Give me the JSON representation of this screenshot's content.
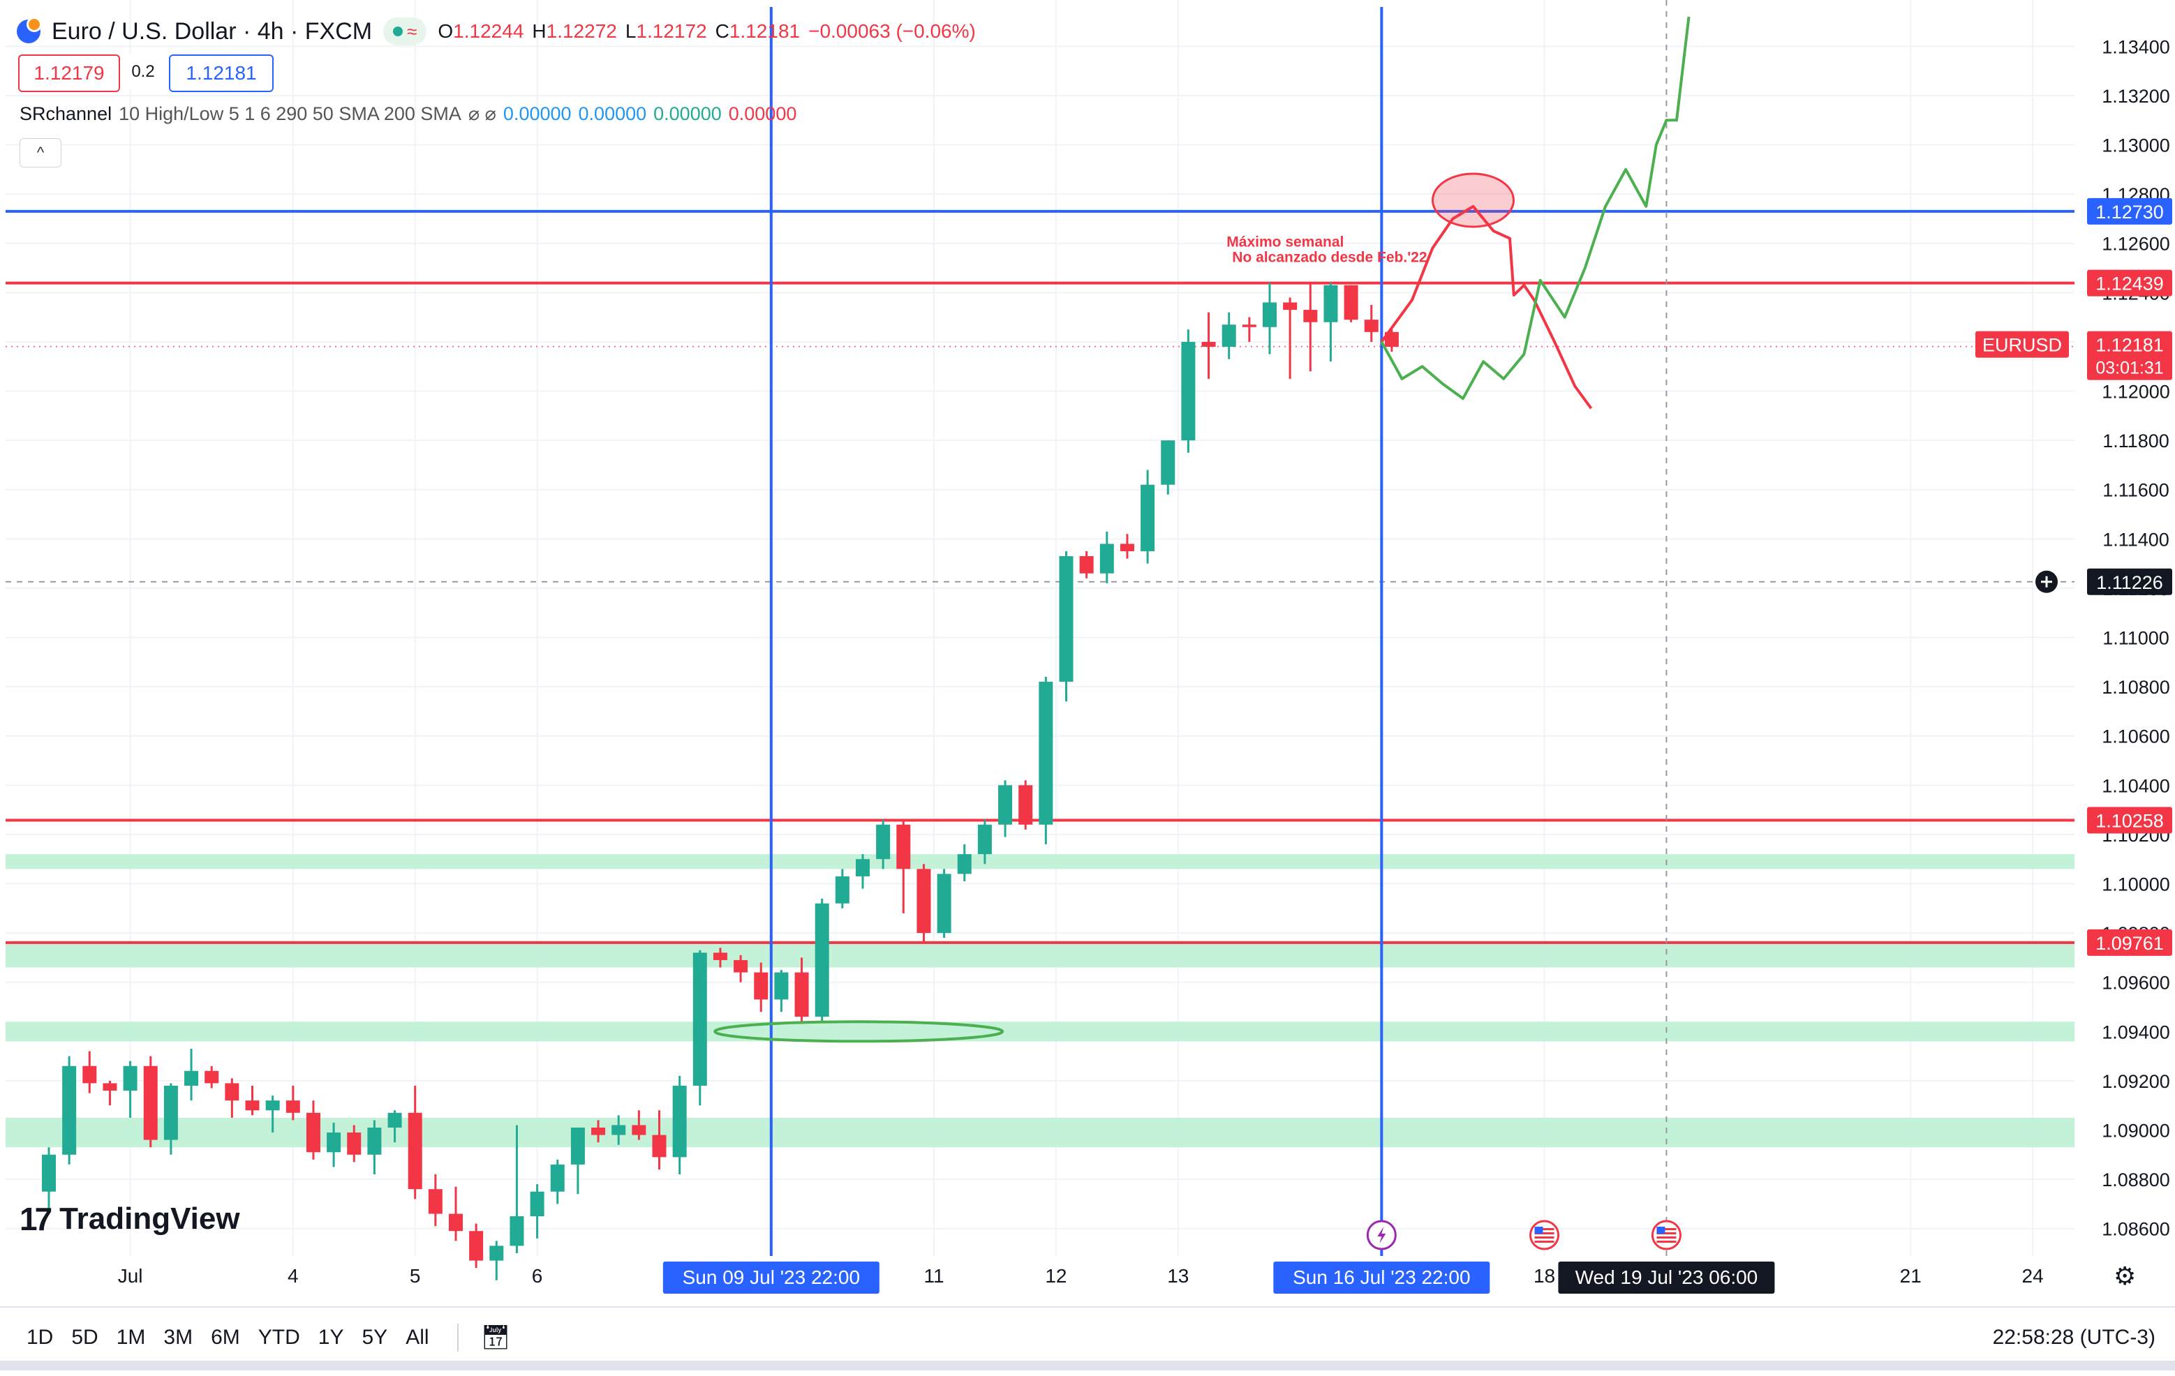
{
  "header": {
    "title": "Euro / U.S. Dollar · 4h · FXCM",
    "status_icon": "≈",
    "open_label": "O",
    "open": "1.12244",
    "high_label": "H",
    "high": "1.12272",
    "low_label": "L",
    "low": "1.12172",
    "close_label": "C",
    "close": "1.12181",
    "change": "−0.00063 (−0.06%)",
    "sell": "1.12179",
    "spread": "0.2",
    "buy": "1.12181"
  },
  "indicator": {
    "name": "SRchannel",
    "params": "10 High/Low 5 1 6 290 50 SMA 200 SMA",
    "icons": "⌀ ⌀",
    "v1": "0.00000",
    "v2": "0.00000",
    "v3": "0.00000",
    "v4": "0.00000",
    "collapse": "^"
  },
  "watermark": {
    "brand": "TradingView",
    "mark": "17"
  },
  "toolbar": {
    "ranges": [
      "1D",
      "5D",
      "1M",
      "3M",
      "6M",
      "YTD",
      "1Y",
      "5Y",
      "All"
    ],
    "calendar_icon": "calendar-icon",
    "clock": "22:58:28 (UTC-3)",
    "settings_icon": "⚙"
  },
  "colors": {
    "up": "#22ab94",
    "down": "#f23645",
    "blue": "#2962ff",
    "zone": "#b8f0d2",
    "red_line": "#f23645"
  },
  "chart_data": {
    "type": "candlestick",
    "symbol": "EURUSD",
    "interval": "4h",
    "ylim": [
      1.085,
      1.1352
    ],
    "y_ticks": [
      1.086,
      1.088,
      1.09,
      1.092,
      1.094,
      1.096,
      1.098,
      1.1,
      1.102,
      1.104,
      1.106,
      1.108,
      1.11,
      1.112,
      1.114,
      1.116,
      1.118,
      1.12,
      1.122,
      1.124,
      1.126,
      1.128,
      1.13,
      1.132,
      1.134
    ],
    "y_tick_labels": [
      "1.08600",
      "1.08800",
      "1.09000",
      "1.09200",
      "1.09400",
      "1.09600",
      "1.09800",
      "1.10000",
      "1.10200",
      "1.10400",
      "1.10600",
      "1.10800",
      "1.11000",
      "1.11200",
      "1.11400",
      "1.11600",
      "1.11800",
      "1.12000",
      "1.12200",
      "1.12400",
      "1.12600",
      "1.12800",
      "1.13000",
      "1.13200",
      "1.13400"
    ],
    "x_labels": [
      {
        "label": "Jul",
        "bar": 4
      },
      {
        "label": "4",
        "bar": 12
      },
      {
        "label": "5",
        "bar": 18
      },
      {
        "label": "6",
        "bar": 24
      },
      {
        "label": "11",
        "bar": 43.5
      },
      {
        "label": "12",
        "bar": 49.5
      },
      {
        "label": "13",
        "bar": 55.5
      },
      {
        "label": "18",
        "bar": 73.5
      },
      {
        "label": "21",
        "bar": 91.5
      },
      {
        "label": "24",
        "bar": 97.5
      }
    ],
    "x_highlight_labels": [
      {
        "label": "Sun 09 Jul '23   22:00",
        "bar": 35.5
      },
      {
        "label": "Sun 16 Jul '23   22:00",
        "bar": 65.5
      },
      {
        "label": "Wed 19 Jul '23   06:00",
        "bar": 79.5
      }
    ],
    "candles": [
      [
        1.0875,
        1.0893,
        1.0868,
        1.089
      ],
      [
        1.089,
        1.093,
        1.0886,
        1.0926
      ],
      [
        1.0926,
        1.0932,
        1.0915,
        1.0919
      ],
      [
        1.0919,
        1.092,
        1.091,
        1.0916
      ],
      [
        1.0916,
        1.0928,
        1.0905,
        1.0926
      ],
      [
        1.0926,
        1.093,
        1.0893,
        1.0896
      ],
      [
        1.0896,
        1.0919,
        1.089,
        1.0918
      ],
      [
        1.0918,
        1.0933,
        1.0912,
        1.0924
      ],
      [
        1.0924,
        1.0926,
        1.0917,
        1.0919
      ],
      [
        1.0919,
        1.0921,
        1.0905,
        1.0912
      ],
      [
        1.0912,
        1.0918,
        1.0906,
        1.0908
      ],
      [
        1.0908,
        1.0914,
        1.0899,
        1.0912
      ],
      [
        1.0912,
        1.0918,
        1.0904,
        1.0907
      ],
      [
        1.0907,
        1.0912,
        1.0888,
        1.0891
      ],
      [
        1.0891,
        1.0903,
        1.0885,
        1.0899
      ],
      [
        1.0899,
        1.0902,
        1.0887,
        1.089
      ],
      [
        1.089,
        1.0904,
        1.0882,
        1.0901
      ],
      [
        1.0901,
        1.0908,
        1.0895,
        1.0907
      ],
      [
        1.0907,
        1.0918,
        1.0872,
        1.0876
      ],
      [
        1.0876,
        1.0882,
        1.0861,
        1.0866
      ],
      [
        1.0866,
        1.0877,
        1.0855,
        1.0859
      ],
      [
        1.0859,
        1.0862,
        1.0844,
        1.0847
      ],
      [
        1.0847,
        1.0855,
        1.0839,
        1.0853
      ],
      [
        1.0853,
        1.0902,
        1.085,
        1.0865
      ],
      [
        1.0865,
        1.0878,
        1.0856,
        1.0875
      ],
      [
        1.0875,
        1.0888,
        1.087,
        1.0886
      ],
      [
        1.0886,
        1.0901,
        1.0874,
        1.0901
      ],
      [
        1.0901,
        1.0904,
        1.0895,
        1.0898
      ],
      [
        1.0898,
        1.0906,
        1.0894,
        1.0902
      ],
      [
        1.0902,
        1.0908,
        1.0896,
        1.0898
      ],
      [
        1.0898,
        1.0908,
        1.0884,
        1.0889
      ],
      [
        1.0889,
        1.0922,
        1.0882,
        1.0918
      ],
      [
        1.0918,
        1.0973,
        1.091,
        1.0972
      ],
      [
        1.0972,
        1.0974,
        1.0966,
        1.0969
      ],
      [
        1.0969,
        1.0971,
        1.096,
        1.0964
      ],
      [
        1.0964,
        1.0968,
        1.0948,
        1.0953
      ],
      [
        1.0953,
        1.0965,
        1.0948,
        1.0964
      ],
      [
        1.0964,
        1.097,
        1.0944,
        1.0946
      ],
      [
        1.0946,
        1.0994,
        1.0944,
        1.0992
      ],
      [
        1.0992,
        1.1006,
        1.099,
        1.1003
      ],
      [
        1.1003,
        1.1012,
        1.0998,
        1.101
      ],
      [
        1.101,
        1.1026,
        1.1006,
        1.1024
      ],
      [
        1.1024,
        1.1026,
        1.0988,
        1.1006
      ],
      [
        1.1006,
        1.1008,
        1.0976,
        1.098
      ],
      [
        1.098,
        1.1006,
        1.0978,
        1.1004
      ],
      [
        1.1004,
        1.1016,
        1.1001,
        1.1012
      ],
      [
        1.1012,
        1.1026,
        1.1008,
        1.1024
      ],
      [
        1.1024,
        1.1042,
        1.1019,
        1.104
      ],
      [
        1.104,
        1.1042,
        1.1022,
        1.1024
      ],
      [
        1.1024,
        1.1084,
        1.1016,
        1.1082
      ],
      [
        1.1082,
        1.1135,
        1.1074,
        1.1133
      ],
      [
        1.1133,
        1.1135,
        1.1124,
        1.1126
      ],
      [
        1.1126,
        1.1143,
        1.1122,
        1.1138
      ],
      [
        1.1138,
        1.1142,
        1.1132,
        1.1135
      ],
      [
        1.1135,
        1.1168,
        1.113,
        1.1162
      ],
      [
        1.1162,
        1.118,
        1.1158,
        1.118
      ],
      [
        1.118,
        1.1225,
        1.1175,
        1.122
      ],
      [
        1.122,
        1.1232,
        1.1205,
        1.1218
      ],
      [
        1.1218,
        1.1232,
        1.1213,
        1.1227
      ],
      [
        1.1227,
        1.123,
        1.122,
        1.1226
      ],
      [
        1.1226,
        1.1244,
        1.1215,
        1.1236
      ],
      [
        1.1236,
        1.1238,
        1.1205,
        1.1233
      ],
      [
        1.1233,
        1.1244,
        1.1208,
        1.1228
      ],
      [
        1.1228,
        1.1244,
        1.1212,
        1.1243
      ],
      [
        1.1243,
        1.1243,
        1.1228,
        1.1229
      ],
      [
        1.1229,
        1.1235,
        1.122,
        1.1224
      ],
      [
        1.1224,
        1.1225,
        1.1216,
        1.1218
      ]
    ],
    "hlines": [
      {
        "value": 1.1273,
        "label": "1.12730",
        "color": "#2962ff"
      },
      {
        "value": 1.12439,
        "label": "1.12439",
        "color": "#f23645"
      },
      {
        "value": 1.10258,
        "label": "1.10258",
        "color": "#f23645"
      },
      {
        "value": 1.09761,
        "label": "1.09761",
        "color": "#f23645"
      }
    ],
    "zones": [
      [
        1.1006,
        1.1012
      ],
      [
        1.0966,
        1.0976
      ],
      [
        1.0936,
        1.0944
      ],
      [
        1.0893,
        1.0905
      ]
    ],
    "vlines": [
      {
        "bar": 35.5,
        "color": "#2962ff"
      },
      {
        "bar": 65.5,
        "color": "#2962ff"
      }
    ],
    "crosshair": {
      "bar": 79.5,
      "value": 1.11226,
      "label": "1.11226"
    },
    "last_price": {
      "value": 1.12181,
      "label": "1.12181",
      "symbol": "EURUSD",
      "countdown": "03:01:31"
    },
    "annotation": {
      "line1": "Máximo semanal",
      "line2": "No alcanzado desde Feb.'22",
      "bar": 62,
      "value": 1.1245
    },
    "scenario_red": [
      [
        65.5,
        1.122
      ],
      [
        67,
        1.1237
      ],
      [
        68,
        1.1258
      ],
      [
        69,
        1.127
      ],
      [
        70,
        1.1275
      ],
      [
        71,
        1.1265
      ],
      [
        71.8,
        1.1262
      ],
      [
        72,
        1.1239
      ],
      [
        72.5,
        1.1243
      ],
      [
        73,
        1.1237
      ],
      [
        74,
        1.122
      ],
      [
        75,
        1.1202
      ],
      [
        75.8,
        1.1193
      ]
    ],
    "scenario_green": [
      [
        65.5,
        1.122
      ],
      [
        66.5,
        1.1205
      ],
      [
        67.5,
        1.121
      ],
      [
        68.5,
        1.1203
      ],
      [
        69.5,
        1.1197
      ],
      [
        70.5,
        1.1212
      ],
      [
        71.5,
        1.1205
      ],
      [
        72.5,
        1.1215
      ],
      [
        73.3,
        1.1245
      ],
      [
        74.5,
        1.123
      ],
      [
        75.5,
        1.125
      ],
      [
        76.5,
        1.1275
      ],
      [
        77.5,
        1.129
      ],
      [
        78.5,
        1.1275
      ],
      [
        79,
        1.13
      ],
      [
        79.5,
        1.131
      ],
      [
        80,
        1.131
      ],
      [
        80.6,
        1.1352
      ]
    ],
    "event_markers": [
      {
        "bar": 65.5,
        "icon": "lightning-icon"
      },
      {
        "bar": 73.5,
        "icon": "us-flag-icon"
      },
      {
        "bar": 79.5,
        "icon": "us-flag-icon"
      }
    ]
  }
}
